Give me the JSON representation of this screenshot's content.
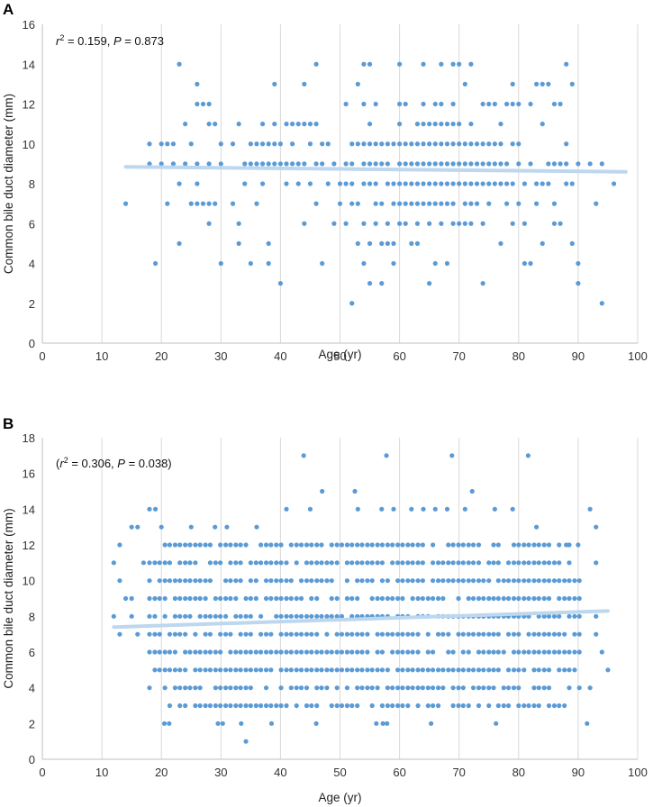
{
  "chart_data": [
    {
      "type": "scatter",
      "panel_label": "A",
      "title": "",
      "annotation": "r² = 0.159, P = 0.873",
      "xlabel": "Age (yr)",
      "ylabel": "Common bile duct diameter (mm)",
      "xlim": [
        0,
        100
      ],
      "ylim": [
        0,
        16
      ],
      "x_ticks": [
        "0",
        "10",
        "20",
        "30",
        "40",
        "50",
        "60",
        "70",
        "80",
        "90",
        "100"
      ],
      "y_ticks": [
        "0",
        "2",
        "4",
        "6",
        "8",
        "10",
        "12",
        "14",
        "16"
      ],
      "grid": "vertical",
      "legend": "none",
      "point_color": "#5b9bd5",
      "trend_color": "#bdd7ee",
      "trendline": {
        "x": [
          14,
          98
        ],
        "y": [
          8.85,
          8.6
        ]
      },
      "points": [
        [
          14,
          7
        ],
        [
          18,
          10
        ],
        [
          18,
          9
        ],
        [
          19,
          4
        ],
        [
          20,
          10
        ],
        [
          20,
          9
        ],
        [
          21,
          10
        ],
        [
          21,
          7
        ],
        [
          22,
          10
        ],
        [
          22,
          9
        ],
        [
          23,
          14
        ],
        [
          23,
          8
        ],
        [
          23,
          5
        ],
        [
          24,
          11
        ],
        [
          24,
          9
        ],
        [
          25,
          10
        ],
        [
          25,
          7
        ],
        [
          26,
          13
        ],
        [
          26,
          12
        ],
        [
          26,
          9
        ],
        [
          26,
          8
        ],
        [
          26,
          7
        ],
        [
          27,
          12
        ],
        [
          27,
          7
        ],
        [
          28,
          12
        ],
        [
          28,
          11
        ],
        [
          28,
          9
        ],
        [
          28,
          7
        ],
        [
          28,
          6
        ],
        [
          29,
          11
        ],
        [
          29,
          7
        ],
        [
          30,
          10
        ],
        [
          30,
          9
        ],
        [
          30,
          4
        ],
        [
          32,
          10
        ],
        [
          32,
          7
        ],
        [
          33,
          11
        ],
        [
          33,
          6
        ],
        [
          33,
          5
        ],
        [
          34,
          9
        ],
        [
          34,
          8
        ],
        [
          35,
          10
        ],
        [
          35,
          9
        ],
        [
          35,
          4
        ],
        [
          36,
          10
        ],
        [
          36,
          9
        ],
        [
          36,
          7
        ],
        [
          37,
          10
        ],
        [
          37,
          9
        ],
        [
          37,
          11
        ],
        [
          37,
          8
        ],
        [
          38,
          10
        ],
        [
          38,
          9
        ],
        [
          38,
          5
        ],
        [
          38,
          4
        ],
        [
          39,
          13
        ],
        [
          39,
          10
        ],
        [
          39,
          9
        ],
        [
          39,
          11
        ],
        [
          40,
          10
        ],
        [
          40,
          9
        ],
        [
          40,
          3
        ],
        [
          41,
          11
        ],
        [
          41,
          9
        ],
        [
          41,
          8
        ],
        [
          42,
          10
        ],
        [
          42,
          11
        ],
        [
          42,
          9
        ],
        [
          43,
          11
        ],
        [
          43,
          9
        ],
        [
          43,
          8
        ],
        [
          44,
          13
        ],
        [
          44,
          11
        ],
        [
          44,
          9
        ],
        [
          44,
          6
        ],
        [
          45,
          11
        ],
        [
          45,
          10
        ],
        [
          45,
          8
        ],
        [
          46,
          14
        ],
        [
          46,
          11
        ],
        [
          46,
          9
        ],
        [
          46,
          7
        ],
        [
          47,
          10
        ],
        [
          47,
          9
        ],
        [
          47,
          4
        ],
        [
          48,
          10
        ],
        [
          48,
          8
        ],
        [
          49,
          9
        ],
        [
          49,
          6
        ],
        [
          50,
          8
        ],
        [
          50,
          7
        ],
        [
          51,
          12
        ],
        [
          51,
          9
        ],
        [
          51,
          8
        ],
        [
          51,
          6
        ],
        [
          52,
          10
        ],
        [
          52,
          9
        ],
        [
          52,
          8
        ],
        [
          52,
          7
        ],
        [
          52,
          2
        ],
        [
          53,
          13
        ],
        [
          53,
          10
        ],
        [
          53,
          7
        ],
        [
          53,
          5
        ],
        [
          54,
          14
        ],
        [
          54,
          12
        ],
        [
          54,
          10
        ],
        [
          54,
          9
        ],
        [
          54,
          8
        ],
        [
          54,
          6
        ],
        [
          54,
          4
        ],
        [
          55,
          14
        ],
        [
          55,
          11
        ],
        [
          55,
          10
        ],
        [
          55,
          9
        ],
        [
          55,
          8
        ],
        [
          55,
          5
        ],
        [
          55,
          3
        ],
        [
          56,
          12
        ],
        [
          56,
          10
        ],
        [
          56,
          9
        ],
        [
          56,
          8
        ],
        [
          56,
          7
        ],
        [
          56,
          6
        ],
        [
          57,
          10
        ],
        [
          57,
          9
        ],
        [
          57,
          7
        ],
        [
          57,
          5
        ],
        [
          57,
          3
        ],
        [
          58,
          10
        ],
        [
          58,
          9
        ],
        [
          58,
          8
        ],
        [
          58,
          6
        ],
        [
          58,
          5
        ],
        [
          59,
          10
        ],
        [
          59,
          8
        ],
        [
          59,
          7
        ],
        [
          59,
          5
        ],
        [
          59,
          4
        ],
        [
          60,
          14
        ],
        [
          60,
          12
        ],
        [
          60,
          11
        ],
        [
          60,
          10
        ],
        [
          60,
          9
        ],
        [
          60,
          8
        ],
        [
          60,
          7
        ],
        [
          60,
          6
        ],
        [
          61,
          12
        ],
        [
          61,
          10
        ],
        [
          61,
          9
        ],
        [
          61,
          8
        ],
        [
          61,
          7
        ],
        [
          61,
          6
        ],
        [
          62,
          10
        ],
        [
          62,
          9
        ],
        [
          62,
          8
        ],
        [
          62,
          7
        ],
        [
          62,
          5
        ],
        [
          63,
          11
        ],
        [
          63,
          10
        ],
        [
          63,
          9
        ],
        [
          63,
          8
        ],
        [
          63,
          7
        ],
        [
          63,
          6
        ],
        [
          63,
          5
        ],
        [
          64,
          14
        ],
        [
          64,
          12
        ],
        [
          64,
          11
        ],
        [
          64,
          10
        ],
        [
          64,
          9
        ],
        [
          64,
          8
        ],
        [
          64,
          7
        ],
        [
          65,
          11
        ],
        [
          65,
          10
        ],
        [
          65,
          9
        ],
        [
          65,
          8
        ],
        [
          65,
          7
        ],
        [
          65,
          6
        ],
        [
          65,
          3
        ],
        [
          66,
          12
        ],
        [
          66,
          11
        ],
        [
          66,
          10
        ],
        [
          66,
          9
        ],
        [
          66,
          8
        ],
        [
          66,
          7
        ],
        [
          66,
          4
        ],
        [
          67,
          14
        ],
        [
          67,
          12
        ],
        [
          67,
          11
        ],
        [
          67,
          10
        ],
        [
          67,
          9
        ],
        [
          67,
          8
        ],
        [
          67,
          7
        ],
        [
          67,
          6
        ],
        [
          68,
          11
        ],
        [
          68,
          10
        ],
        [
          68,
          9
        ],
        [
          68,
          8
        ],
        [
          68,
          7
        ],
        [
          68,
          4
        ],
        [
          69,
          14
        ],
        [
          69,
          12
        ],
        [
          69,
          11
        ],
        [
          69,
          10
        ],
        [
          69,
          9
        ],
        [
          69,
          8
        ],
        [
          69,
          7
        ],
        [
          69,
          6
        ],
        [
          70,
          14
        ],
        [
          70,
          11
        ],
        [
          70,
          10
        ],
        [
          70,
          9
        ],
        [
          70,
          8
        ],
        [
          70,
          6
        ],
        [
          71,
          13
        ],
        [
          71,
          10
        ],
        [
          71,
          9
        ],
        [
          71,
          8
        ],
        [
          71,
          7
        ],
        [
          71,
          6
        ],
        [
          72,
          14
        ],
        [
          72,
          11
        ],
        [
          72,
          10
        ],
        [
          72,
          9
        ],
        [
          72,
          8
        ],
        [
          72,
          7
        ],
        [
          72,
          6
        ],
        [
          73,
          10
        ],
        [
          73,
          9
        ],
        [
          73,
          8
        ],
        [
          73,
          7
        ],
        [
          74,
          12
        ],
        [
          74,
          10
        ],
        [
          74,
          9
        ],
        [
          74,
          8
        ],
        [
          74,
          6
        ],
        [
          74,
          3
        ],
        [
          75,
          12
        ],
        [
          75,
          10
        ],
        [
          75,
          9
        ],
        [
          75,
          8
        ],
        [
          75,
          7
        ],
        [
          76,
          12
        ],
        [
          76,
          10
        ],
        [
          76,
          9
        ],
        [
          76,
          8
        ],
        [
          77,
          11
        ],
        [
          77,
          10
        ],
        [
          77,
          9
        ],
        [
          77,
          8
        ],
        [
          77,
          5
        ],
        [
          78,
          12
        ],
        [
          78,
          9
        ],
        [
          78,
          8
        ],
        [
          78,
          7
        ],
        [
          79,
          13
        ],
        [
          79,
          12
        ],
        [
          79,
          10
        ],
        [
          79,
          8
        ],
        [
          79,
          6
        ],
        [
          80,
          12
        ],
        [
          80,
          10
        ],
        [
          80,
          9
        ],
        [
          80,
          7
        ],
        [
          81,
          8
        ],
        [
          81,
          6
        ],
        [
          81,
          4
        ],
        [
          82,
          12
        ],
        [
          82,
          9
        ],
        [
          82,
          4
        ],
        [
          83,
          13
        ],
        [
          83,
          8
        ],
        [
          83,
          7
        ],
        [
          84,
          13
        ],
        [
          84,
          11
        ],
        [
          84,
          8
        ],
        [
          84,
          5
        ],
        [
          85,
          13
        ],
        [
          85,
          9
        ],
        [
          85,
          8
        ],
        [
          86,
          12
        ],
        [
          86,
          9
        ],
        [
          86,
          7
        ],
        [
          86,
          6
        ],
        [
          87,
          12
        ],
        [
          87,
          9
        ],
        [
          87,
          6
        ],
        [
          88,
          14
        ],
        [
          88,
          10
        ],
        [
          88,
          9
        ],
        [
          88,
          8
        ],
        [
          89,
          13
        ],
        [
          89,
          8
        ],
        [
          89,
          5
        ],
        [
          90,
          9
        ],
        [
          90,
          4
        ],
        [
          90,
          3
        ],
        [
          92,
          9
        ],
        [
          93,
          7
        ],
        [
          94,
          9
        ],
        [
          94,
          2
        ],
        [
          96,
          8
        ]
      ]
    },
    {
      "type": "scatter",
      "panel_label": "B",
      "title": "",
      "annotation": "(r² = 0.306, P = 0.038)",
      "xlabel": "Age (yr)",
      "ylabel": "Common bile duct diameter (mm)",
      "xlim": [
        0,
        100
      ],
      "ylim": [
        0,
        18
      ],
      "x_ticks": [
        "0",
        "10",
        "20",
        "30",
        "40",
        "50",
        "60",
        "70",
        "80",
        "90",
        "100"
      ],
      "y_ticks": [
        "0",
        "2",
        "4",
        "6",
        "8",
        "10",
        "12",
        "14",
        "16",
        "18"
      ],
      "grid": "vertical",
      "legend": "none",
      "point_color": "#5b9bd5",
      "trend_color": "#bdd7ee",
      "trendline": {
        "x": [
          12,
          95
        ],
        "y": [
          7.4,
          8.3
        ]
      },
      "points_generated": {
        "x_min": 18,
        "x_max": 91,
        "x_step": 0.85,
        "y_min": 3,
        "y_max": 12,
        "edge_y_min": 4,
        "edge_y_max": 11
      },
      "points": [
        [
          12,
          11
        ],
        [
          12,
          8
        ],
        [
          13,
          12
        ],
        [
          13,
          10
        ],
        [
          13,
          7
        ],
        [
          14,
          9
        ],
        [
          15,
          13
        ],
        [
          15,
          9
        ],
        [
          15,
          8
        ],
        [
          16,
          13
        ],
        [
          16,
          7
        ],
        [
          17,
          11
        ],
        [
          43.9,
          17
        ],
        [
          57.8,
          17
        ],
        [
          68.8,
          17
        ],
        [
          81.6,
          17
        ],
        [
          52.5,
          15
        ],
        [
          72.2,
          15
        ],
        [
          34.2,
          1
        ],
        [
          20.5,
          2
        ],
        [
          21.3,
          2
        ],
        [
          29.5,
          2
        ],
        [
          30.3,
          2
        ],
        [
          33.4,
          2
        ],
        [
          38.5,
          2
        ],
        [
          46,
          2
        ],
        [
          56.1,
          2
        ],
        [
          57.2,
          2
        ],
        [
          57.9,
          2
        ],
        [
          65.3,
          2
        ],
        [
          76.2,
          2
        ],
        [
          91.5,
          2
        ],
        [
          18,
          14
        ],
        [
          19,
          14
        ],
        [
          20,
          13
        ],
        [
          25,
          13
        ],
        [
          29,
          13
        ],
        [
          31,
          13
        ],
        [
          36,
          13
        ],
        [
          41,
          14
        ],
        [
          45,
          14
        ],
        [
          47,
          15
        ],
        [
          53,
          14
        ],
        [
          57,
          14
        ],
        [
          59,
          14
        ],
        [
          62,
          14
        ],
        [
          64,
          14
        ],
        [
          66,
          14
        ],
        [
          68,
          14
        ],
        [
          71,
          14
        ],
        [
          76,
          14
        ],
        [
          79,
          14
        ],
        [
          83,
          13
        ],
        [
          88,
          12
        ],
        [
          90,
          12
        ],
        [
          92,
          14
        ],
        [
          93,
          13
        ],
        [
          93,
          8
        ],
        [
          93,
          7
        ],
        [
          92,
          4
        ],
        [
          94,
          6
        ],
        [
          95,
          5
        ],
        [
          93,
          11
        ]
      ]
    }
  ]
}
